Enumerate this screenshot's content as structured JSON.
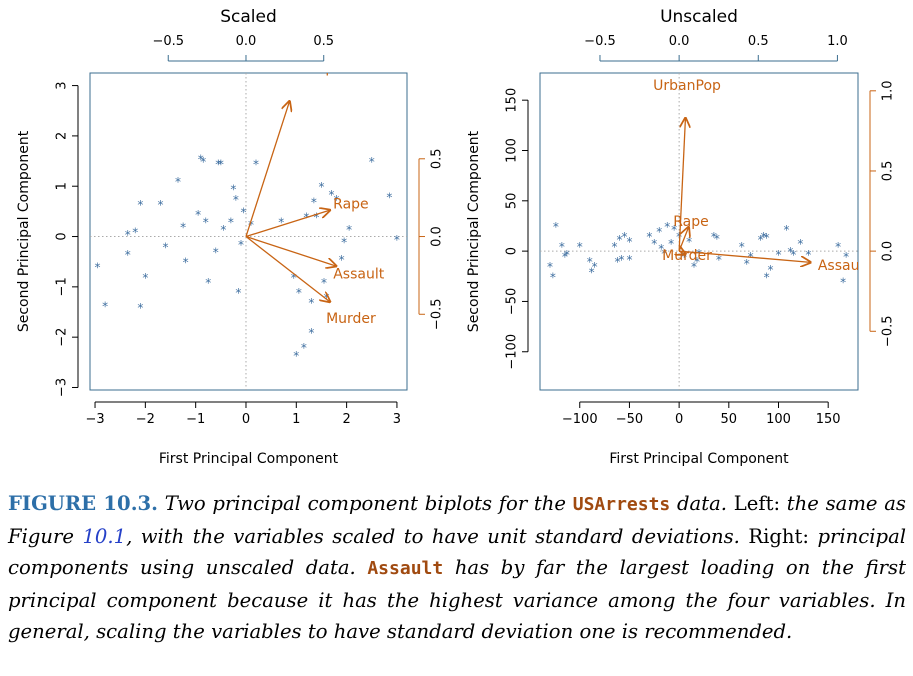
{
  "chart_data": [
    {
      "type": "scatter",
      "title": "Scaled",
      "xlabel": "First Principal Component",
      "ylabel": "Second Principal Component",
      "xlim": [
        -3.1,
        3.2
      ],
      "ylim": [
        -3.05,
        3.25
      ],
      "xticks": [
        -3,
        -2,
        -1,
        0,
        1,
        2,
        3
      ],
      "xtick_labels": [
        "−3",
        "−2",
        "−1",
        "0",
        "1",
        "2",
        "3"
      ],
      "yticks": [
        -3,
        -2,
        -1,
        0,
        1,
        2,
        3
      ],
      "ytick_labels": [
        "−3",
        "−2",
        "−1",
        "0",
        "1",
        "2",
        "3"
      ],
      "top_axis": {
        "ticks": [
          -0.5,
          0,
          0.5
        ],
        "labels": [
          "−0.5",
          "0.0",
          "0.5"
        ]
      },
      "right_axis": {
        "ticks": [
          -0.5,
          0,
          0.5
        ],
        "labels": [
          "−0.5",
          "0.0",
          "0.5"
        ]
      },
      "loading_scale": 3.09,
      "marker": "*",
      "point_color": "#3f6fa0",
      "arrow_color": "#c86414",
      "points": [
        [
          -2.95,
          -0.6
        ],
        [
          -2.8,
          -1.37
        ],
        [
          -2.35,
          0.05
        ],
        [
          -2.35,
          -0.35
        ],
        [
          -2.2,
          0.1
        ],
        [
          -2.1,
          0.65
        ],
        [
          -2.1,
          -1.4
        ],
        [
          -2.0,
          -0.8
        ],
        [
          -1.7,
          0.65
        ],
        [
          -1.6,
          -0.2
        ],
        [
          -1.35,
          1.1
        ],
        [
          -1.25,
          0.2
        ],
        [
          -1.2,
          -0.5
        ],
        [
          -0.95,
          0.45
        ],
        [
          -0.9,
          1.55
        ],
        [
          -0.85,
          1.5
        ],
        [
          -0.8,
          0.3
        ],
        [
          -0.75,
          -0.9
        ],
        [
          -0.6,
          -0.3
        ],
        [
          -0.55,
          1.45
        ],
        [
          -0.5,
          1.45
        ],
        [
          -0.45,
          0.15
        ],
        [
          -0.3,
          0.3
        ],
        [
          -0.25,
          0.95
        ],
        [
          -0.2,
          0.75
        ],
        [
          -0.15,
          -1.1
        ],
        [
          -0.1,
          -0.15
        ],
        [
          -0.05,
          0.5
        ],
        [
          0.1,
          0.25
        ],
        [
          0.2,
          1.45
        ],
        [
          0.7,
          0.3
        ],
        [
          0.95,
          -0.8
        ],
        [
          1.0,
          -2.35
        ],
        [
          1.05,
          -1.1
        ],
        [
          1.15,
          -2.2
        ],
        [
          1.2,
          0.4
        ],
        [
          1.3,
          -1.3
        ],
        [
          1.3,
          -1.9
        ],
        [
          1.35,
          0.7
        ],
        [
          1.4,
          0.4
        ],
        [
          1.5,
          1.0
        ],
        [
          1.55,
          -0.9
        ],
        [
          1.6,
          -1.2
        ],
        [
          1.7,
          0.85
        ],
        [
          1.8,
          0.75
        ],
        [
          1.9,
          -0.45
        ],
        [
          1.95,
          -0.1
        ],
        [
          2.05,
          0.15
        ],
        [
          2.5,
          1.5
        ],
        [
          2.85,
          0.8
        ],
        [
          3.0,
          -0.05
        ]
      ],
      "loadings": [
        {
          "name": "UrbanPop",
          "pc1": 0.28,
          "pc2": 0.87
        },
        {
          "name": "Rape",
          "pc1": 0.54,
          "pc2": 0.17
        },
        {
          "name": "Assault",
          "pc1": 0.58,
          "pc2": -0.19
        },
        {
          "name": "Murder",
          "pc1": 0.54,
          "pc2": -0.42
        }
      ]
    },
    {
      "type": "scatter",
      "title": "Unscaled",
      "xlabel": "First Principal Component",
      "ylabel": "Second Principal Component",
      "xlim": [
        -140,
        180
      ],
      "ylim": [
        -138,
        177
      ],
      "xticks": [
        -100,
        -50,
        0,
        50,
        100,
        150
      ],
      "xtick_labels": [
        "−100",
        "−50",
        "0",
        "50",
        "100",
        "150"
      ],
      "yticks": [
        -100,
        -50,
        0,
        50,
        100,
        150
      ],
      "ytick_labels": [
        "−100",
        "−50",
        "0",
        "50",
        "100",
        "150"
      ],
      "top_axis": {
        "ticks": [
          -0.5,
          0,
          0.5,
          1.0
        ],
        "labels": [
          "−0.5",
          "0.0",
          "0.5",
          "1.0"
        ]
      },
      "right_axis": {
        "ticks": [
          -0.5,
          0,
          0.5,
          1.0
        ],
        "labels": [
          "−0.5",
          "0.0",
          "0.5",
          "1.0"
        ]
      },
      "loading_scale": 159.3,
      "marker": "*",
      "point_color": "#3f6fa0",
      "arrow_color": "#c86414",
      "points": [
        [
          -130,
          -15
        ],
        [
          -127,
          -25
        ],
        [
          -124,
          25
        ],
        [
          -118,
          5
        ],
        [
          -115,
          -5
        ],
        [
          -113,
          -3
        ],
        [
          -100,
          5
        ],
        [
          -90,
          -10
        ],
        [
          -88,
          -20
        ],
        [
          -85,
          -15
        ],
        [
          -65,
          5
        ],
        [
          -62,
          -10
        ],
        [
          -60,
          12
        ],
        [
          -58,
          -8
        ],
        [
          -55,
          15
        ],
        [
          -50,
          10
        ],
        [
          -50,
          -8
        ],
        [
          -30,
          15
        ],
        [
          -25,
          8
        ],
        [
          -20,
          20
        ],
        [
          -18,
          3
        ],
        [
          -15,
          -2
        ],
        [
          -12,
          25
        ],
        [
          -8,
          8
        ],
        [
          -5,
          22
        ],
        [
          0,
          15
        ],
        [
          5,
          -5
        ],
        [
          10,
          10
        ],
        [
          15,
          -15
        ],
        [
          18,
          -10
        ],
        [
          20,
          -2
        ],
        [
          35,
          15
        ],
        [
          38,
          13
        ],
        [
          40,
          -8
        ],
        [
          63,
          5
        ],
        [
          68,
          -12
        ],
        [
          72,
          -5
        ],
        [
          82,
          12
        ],
        [
          85,
          15
        ],
        [
          88,
          14
        ],
        [
          88,
          -25
        ],
        [
          92,
          -18
        ],
        [
          100,
          -3
        ],
        [
          108,
          22
        ],
        [
          112,
          0
        ],
        [
          115,
          -3
        ],
        [
          122,
          8
        ],
        [
          130,
          -3
        ],
        [
          160,
          5
        ],
        [
          165,
          -30
        ],
        [
          168,
          -5
        ]
      ],
      "loadings": [
        {
          "name": "UrbanPop",
          "pc1": 0.04,
          "pc2": 0.83
        },
        {
          "name": "Rape",
          "pc1": 0.06,
          "pc2": 0.15
        },
        {
          "name": "Assault",
          "pc1": 0.83,
          "pc2": -0.07
        },
        {
          "name": "Murder",
          "pc1": 0.04,
          "pc2": -0.02
        }
      ]
    }
  ],
  "caption": {
    "label": "FIGURE 10.3.",
    "s1": "Two principal component biplots for the",
    "code1": "USArrests",
    "s2": "data.",
    "left_word": "Left:",
    "s3": "the same as Figure",
    "ref": "10.1",
    "s4": ", with the variables scaled to have unit standard deviations.",
    "right_word": "Right:",
    "s5": "principal components using unscaled data.",
    "code2": "Assault",
    "s6": "has by far the largest loading on the first principal component because it has the highest variance among the four variables. In general, scaling the variables to have standard deviation one is recommended."
  }
}
